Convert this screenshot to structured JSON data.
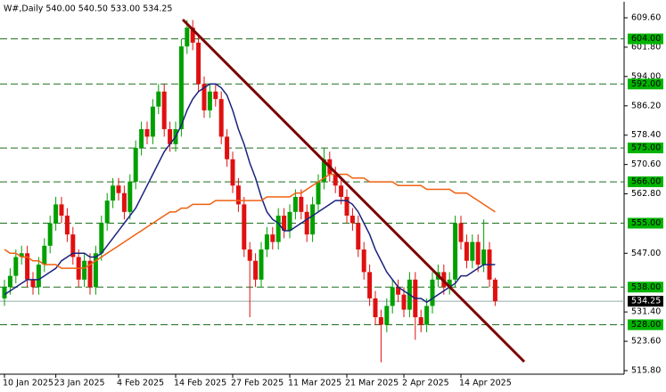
{
  "chart_data": {
    "type": "candlestick",
    "title": "W#,Daily 540.00 540.50 533.00 534.25",
    "categories": [
      "10 Jan 2025",
      null,
      null,
      null,
      null,
      null,
      null,
      null,
      null,
      "23 Jan 2025",
      null,
      null,
      null,
      null,
      null,
      null,
      null,
      null,
      null,
      null,
      "4 Feb 2025",
      null,
      null,
      null,
      null,
      null,
      null,
      null,
      null,
      null,
      "14 Feb 2025",
      null,
      null,
      null,
      null,
      null,
      null,
      null,
      null,
      null,
      "27 Feb 2025",
      null,
      null,
      null,
      null,
      null,
      null,
      null,
      null,
      null,
      "11 Mar 2025",
      null,
      null,
      null,
      null,
      null,
      null,
      null,
      null,
      null,
      "21 Mar 2025",
      null,
      null,
      null,
      null,
      null,
      null,
      null,
      null,
      null,
      "2 Apr 2025",
      null,
      null,
      null,
      null,
      null,
      null,
      null,
      null,
      null,
      "14 Apr 2025",
      null,
      null,
      null,
      null,
      null,
      null
    ],
    "open": [
      535,
      538,
      541,
      546,
      547,
      540,
      538,
      544,
      549,
      555,
      560,
      557,
      552,
      546,
      540,
      545,
      538,
      547,
      555,
      561,
      565,
      563,
      558,
      566,
      575,
      580,
      578,
      586,
      590,
      580,
      576,
      580,
      602,
      607,
      603,
      592,
      585,
      590,
      588,
      578,
      572,
      565,
      560,
      548,
      545,
      540,
      548,
      552,
      550,
      557,
      553,
      558,
      562,
      558,
      552,
      560,
      566,
      572,
      568,
      565,
      562,
      557,
      555,
      548,
      542,
      535,
      530,
      528,
      533,
      538,
      536,
      532,
      540,
      530,
      528,
      533,
      540,
      542,
      538,
      540,
      555,
      550,
      545,
      550,
      544,
      548,
      540
    ],
    "high": [
      540,
      543,
      548,
      549,
      549,
      542,
      546,
      551,
      557,
      562,
      562,
      559,
      554,
      548,
      547,
      547,
      549,
      557,
      563,
      567,
      567,
      565,
      568,
      577,
      582,
      582,
      588,
      592,
      592,
      582,
      582,
      604,
      609,
      609,
      605,
      594,
      592,
      592,
      590,
      580,
      574,
      567,
      562,
      550,
      547,
      550,
      554,
      554,
      559,
      559,
      560,
      564,
      564,
      560,
      562,
      568,
      575,
      574,
      570,
      567,
      564,
      559,
      557,
      550,
      544,
      537,
      532,
      535,
      540,
      540,
      538,
      542,
      542,
      532,
      535,
      542,
      544,
      544,
      542,
      557,
      557,
      552,
      552,
      552,
      556,
      550,
      540.5
    ],
    "low": [
      533,
      536,
      539,
      544,
      538,
      536,
      536,
      542,
      547,
      553,
      555,
      550,
      544,
      538,
      538,
      536,
      536,
      545,
      553,
      559,
      561,
      556,
      556,
      564,
      573,
      576,
      576,
      584,
      578,
      574,
      574,
      578,
      600,
      601,
      590,
      583,
      583,
      586,
      576,
      570,
      563,
      558,
      546,
      530,
      538,
      538,
      546,
      548,
      548,
      551,
      551,
      556,
      556,
      550,
      550,
      558,
      564,
      566,
      563,
      560,
      555,
      553,
      546,
      540,
      533,
      528,
      518,
      526,
      531,
      534,
      530,
      530,
      524,
      526,
      526,
      531,
      538,
      536,
      536,
      538,
      548,
      543,
      543,
      542,
      542,
      538,
      533
    ],
    "close": [
      538,
      541,
      546,
      547,
      540,
      538,
      544,
      549,
      555,
      560,
      557,
      552,
      546,
      540,
      545,
      538,
      547,
      555,
      561,
      565,
      563,
      558,
      566,
      575,
      580,
      578,
      586,
      590,
      580,
      576,
      580,
      602,
      607,
      603,
      592,
      585,
      590,
      588,
      578,
      572,
      565,
      560,
      548,
      545,
      540,
      548,
      552,
      550,
      557,
      553,
      558,
      562,
      558,
      552,
      560,
      566,
      572,
      568,
      565,
      562,
      557,
      555,
      548,
      542,
      535,
      530,
      528,
      533,
      538,
      536,
      532,
      540,
      530,
      528,
      533,
      540,
      542,
      538,
      540,
      555,
      550,
      545,
      550,
      544,
      548,
      540,
      534.25
    ],
    "up_color": "#00a000",
    "down_color": "#e01010",
    "series": [
      {
        "color": "#1a237e",
        "values": [
          536,
          537,
          538,
          539,
          540,
          540,
          540,
          541,
          542,
          543,
          545,
          546,
          547,
          547,
          547,
          546,
          546,
          547,
          549,
          551,
          553,
          555,
          557,
          559,
          562,
          565,
          568,
          571,
          574,
          576,
          578,
          581,
          585,
          588,
          590,
          591,
          592,
          592,
          591,
          589,
          585,
          580,
          576,
          571,
          567,
          562,
          558,
          556,
          555,
          553,
          553,
          554,
          555,
          556,
          557,
          558,
          559,
          560,
          561,
          561,
          561,
          560,
          558,
          555,
          552,
          548,
          545,
          542,
          540,
          538,
          537,
          536,
          535,
          535,
          534,
          535,
          536,
          537,
          538,
          539,
          541,
          541,
          542,
          543,
          544,
          544,
          544
        ]
      },
      {
        "color": "#f06010",
        "values": [
          548,
          547,
          547,
          546,
          546,
          545,
          545,
          544,
          544,
          544,
          543,
          543,
          543,
          543,
          543,
          544,
          545,
          546,
          547,
          548,
          549,
          550,
          551,
          552,
          553,
          554,
          555,
          556,
          557,
          558,
          558,
          559,
          559,
          560,
          560,
          560,
          560,
          561,
          561,
          561,
          561,
          561,
          561,
          561,
          561,
          561,
          562,
          562,
          562,
          562,
          562,
          563,
          563,
          564,
          565,
          566,
          567,
          568,
          568,
          568,
          568,
          567,
          567,
          567,
          566,
          566,
          566,
          566,
          566,
          565,
          565,
          565,
          565,
          565,
          564,
          564,
          564,
          564,
          564,
          563,
          563,
          563,
          562,
          561,
          560,
          559,
          558
        ]
      }
    ],
    "ylim": [
      515.8,
      609.6
    ],
    "yticks": [
      {
        "value": 609.6,
        "label": "609.60"
      },
      {
        "value": 601.8,
        "label": "601.80"
      },
      {
        "value": 594,
        "label": "594.00"
      },
      {
        "value": 586.2,
        "label": "586.20"
      },
      {
        "value": 578.4,
        "label": "578.40"
      },
      {
        "value": 570.6,
        "label": "570.60"
      },
      {
        "value": 562.8,
        "label": "562.80"
      },
      {
        "value": 547,
        "label": "547.00"
      },
      {
        "value": 531.4,
        "label": "531.40"
      },
      {
        "value": 523.6,
        "label": "523.60"
      },
      {
        "value": 515.8,
        "label": "515.80"
      }
    ],
    "levels": [
      {
        "value": 604,
        "label": "604.00"
      },
      {
        "value": 592,
        "label": "592.00"
      },
      {
        "value": 575,
        "label": "575.00"
      },
      {
        "value": 566,
        "label": "566.00"
      },
      {
        "value": 555,
        "label": "555.00"
      },
      {
        "value": 538,
        "label": "538.00"
      },
      {
        "value": 528,
        "label": "528.00"
      }
    ],
    "level_color": "#1e6e1e",
    "level_label_color": "#00b400",
    "current_price": 534.25
  }
}
